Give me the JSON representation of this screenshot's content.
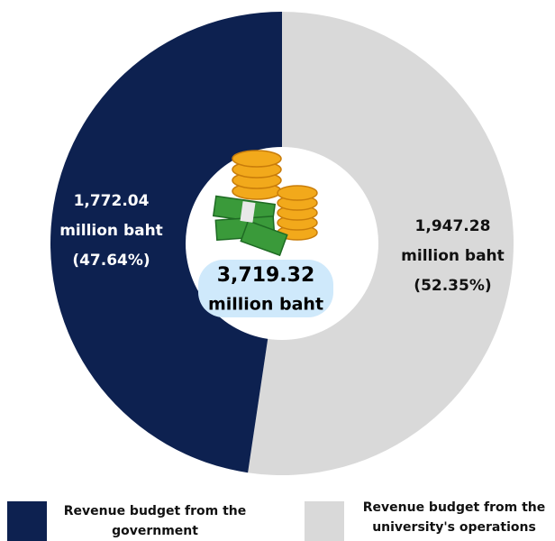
{
  "chart_data": {
    "type": "pie",
    "categories": [
      "Revenue budget from the government",
      "Revenue budget from the university's operations"
    ],
    "values": [
      1772.04,
      1947.28
    ],
    "value_labels": [
      "1,772.04",
      "1,947.28"
    ],
    "percent_labels": [
      "(47.64%)",
      "(52.35%)"
    ],
    "unit": "million baht",
    "colors": [
      "#0d2150",
      "#d9d9d9"
    ],
    "total": 3719.32,
    "total_label": "3,719.32",
    "donut": true
  }
}
